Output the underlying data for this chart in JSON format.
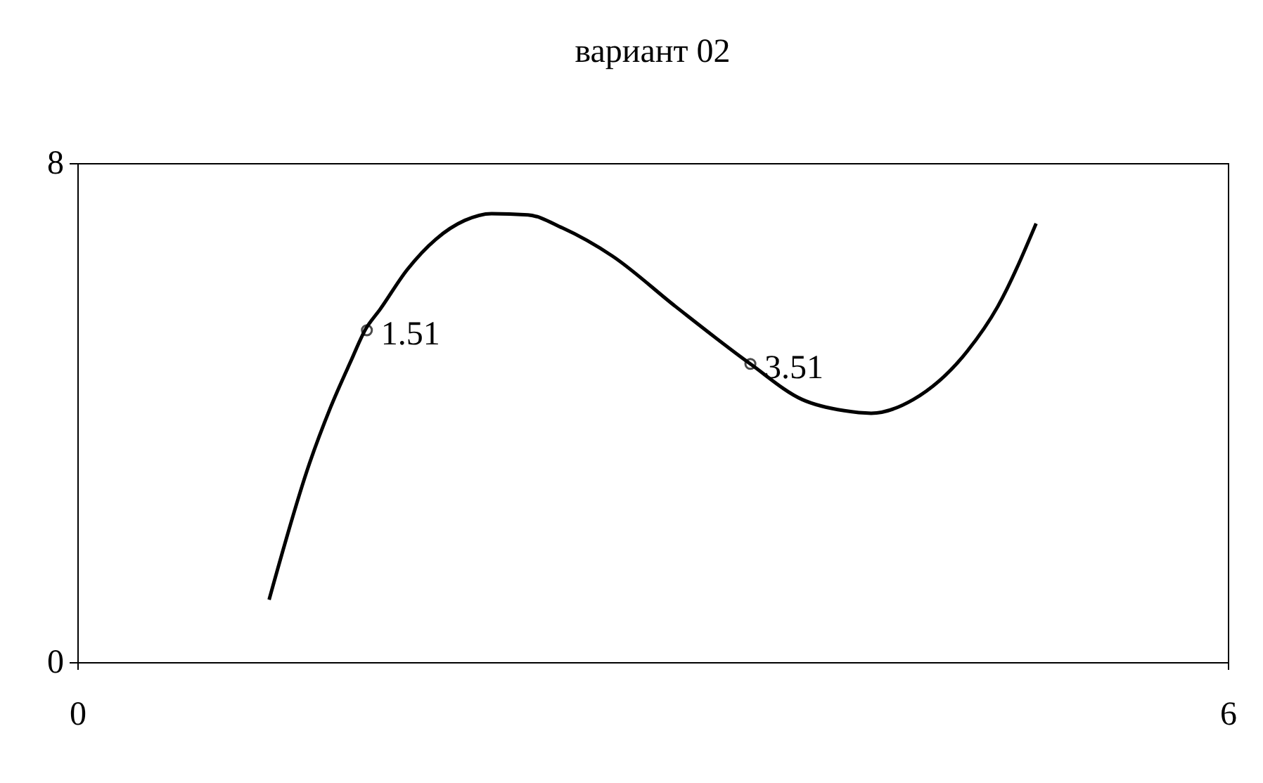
{
  "chart_data": {
    "type": "line",
    "title": "вариант 02",
    "xlim": [
      0,
      6
    ],
    "xticks": [
      0,
      6
    ],
    "ylim": [
      0,
      8
    ],
    "yticks": [
      0,
      8
    ],
    "series": [
      {
        "color": "#000000",
        "marker": "none",
        "line_style": "solid",
        "x": [
          1.0,
          1.21,
          1.32,
          1.43,
          1.5,
          1.58,
          1.72,
          1.87,
          2.02,
          2.16,
          2.35,
          2.53,
          2.79,
          3.12,
          3.51,
          3.78,
          4.0,
          4.14,
          4.36,
          4.64,
          4.8,
          5.0
        ],
        "values": [
          1.0,
          3.18,
          4.08,
          4.85,
          5.32,
          5.66,
          6.29,
          6.78,
          7.08,
          7.19,
          7.17,
          6.96,
          6.51,
          5.7,
          4.78,
          4.21,
          4.03,
          3.99,
          4.21,
          4.98,
          5.7,
          7.03
        ]
      },
      {
        "type": "scatter",
        "color": "#000000",
        "marker": "circle",
        "x": [
          1.51,
          3.51
        ],
        "values": [
          5.32,
          4.78
        ]
      }
    ],
    "annotations": [
      {
        "text": "1.51",
        "x": 1.51,
        "y": 5.32
      },
      {
        "text": "3.51",
        "x": 3.51,
        "y": 4.78
      }
    ]
  }
}
